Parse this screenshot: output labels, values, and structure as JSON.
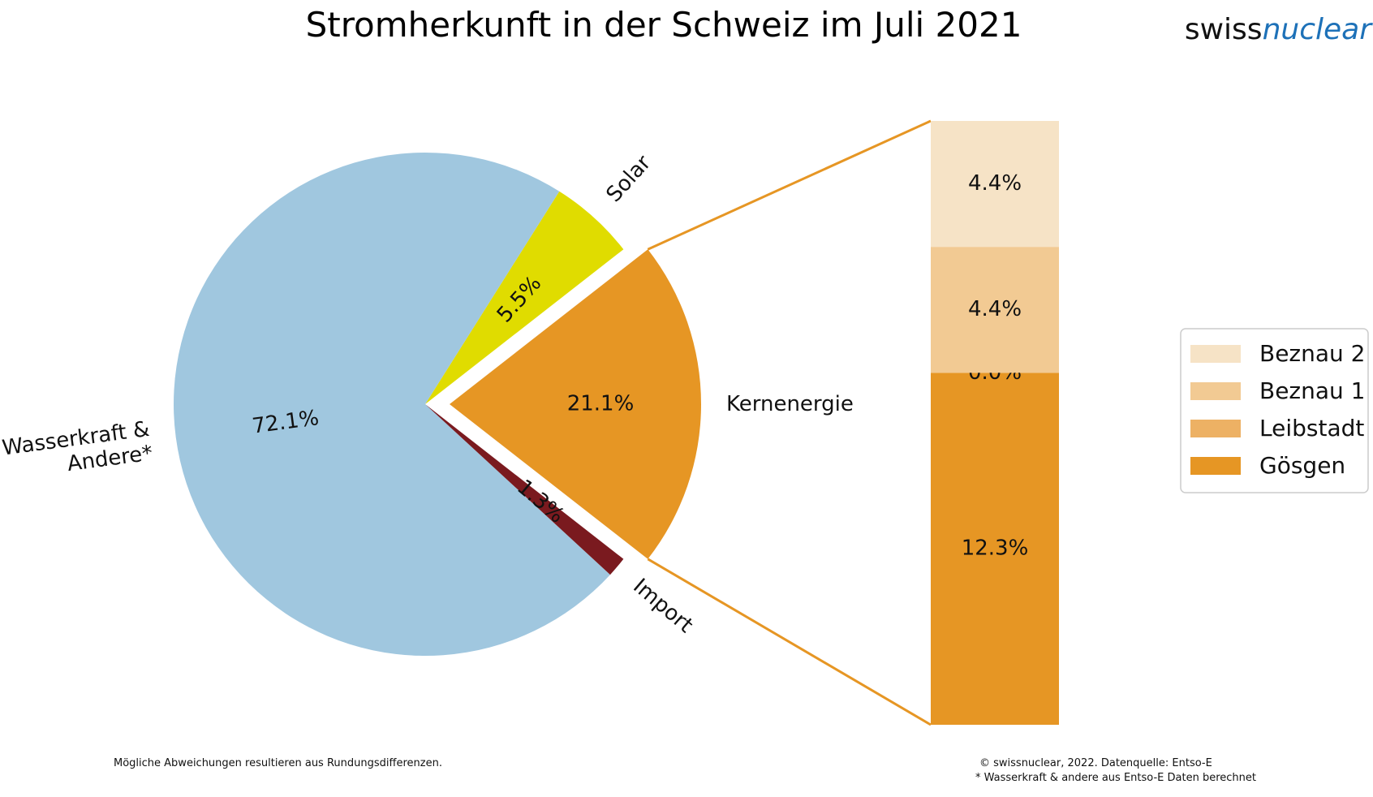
{
  "title": "Stromherkunft in der Schweiz im Juli 2021",
  "logo": {
    "part1": "swiss",
    "part2": "nuclear"
  },
  "chart_data": {
    "type": "pie",
    "pie": {
      "categories": [
        "Kernenergie",
        "Solar",
        "Wasserkraft & Andere*",
        "Import"
      ],
      "values": [
        21.1,
        5.5,
        72.1,
        1.3
      ],
      "labels": [
        "21.1%",
        "5.5%",
        "72.1%",
        "1.3%"
      ],
      "colors": [
        "#e69624",
        "#e0dc00",
        "#a0c7df",
        "#7a1a1f"
      ],
      "exploded": "Kernenergie"
    },
    "breakdown": {
      "type": "bar",
      "stacked": true,
      "categories": [
        "Gösgen",
        "Leibstadt",
        "Beznau 1",
        "Beznau 2"
      ],
      "values": [
        12.3,
        0.0,
        4.4,
        4.4
      ],
      "labels": [
        "12.3%",
        "0.0%",
        "4.4%",
        "4.4%"
      ],
      "colors": [
        "#e69624",
        "#edb164",
        "#f2ca93",
        "#f6e3c6"
      ]
    },
    "legend": {
      "position": "right",
      "items": [
        "Beznau 2",
        "Beznau 1",
        "Leibstadt",
        "Gösgen"
      ],
      "colors": [
        "#f6e3c6",
        "#f2ca93",
        "#edb164",
        "#e69624"
      ]
    }
  },
  "footer": {
    "left": "Mögliche Abweichungen resultieren aus Rundungsdifferenzen.",
    "right_line1": "© swissnuclear, 2022. Datenquelle: Entso-E",
    "right_line2": "* Wasserkraft & andere aus Entso-E Daten berechnet"
  }
}
